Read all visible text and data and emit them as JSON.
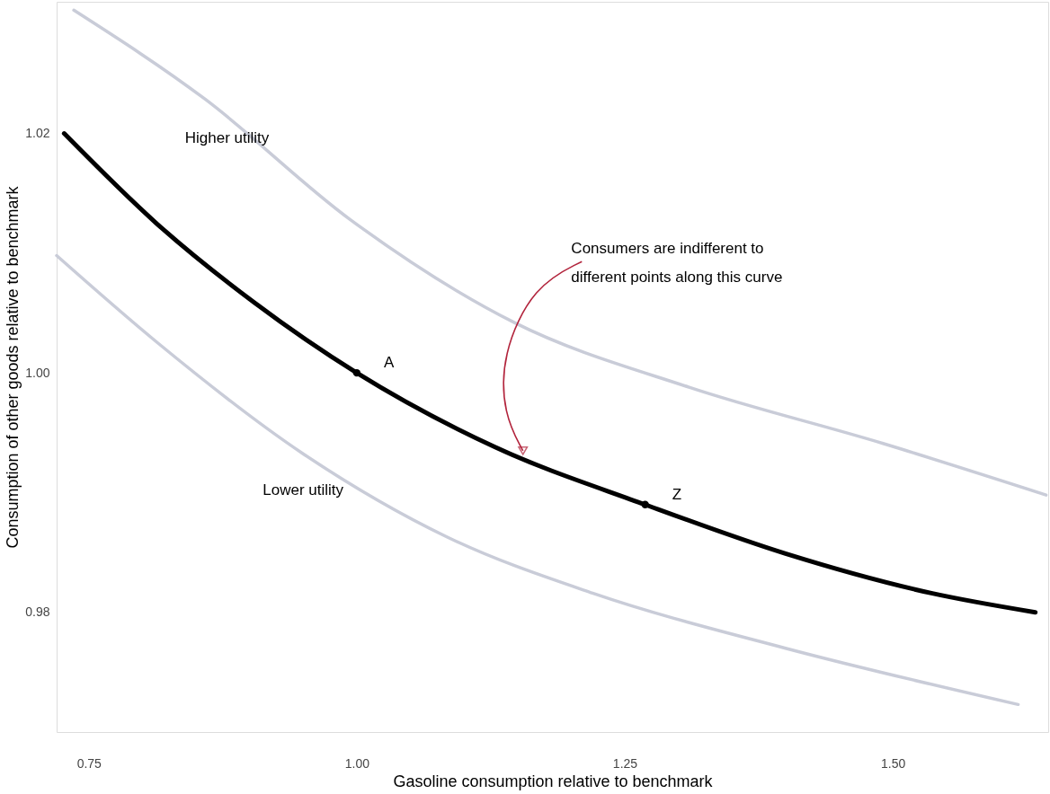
{
  "chart_data": {
    "type": "line",
    "xlabel": "Gasoline consumption relative to benchmark",
    "ylabel": "Consumption of other goods relative to benchmark",
    "xlim": [
      0.72,
      1.645
    ],
    "ylim": [
      0.97,
      1.031
    ],
    "xticks": [
      {
        "value": 0.75,
        "label": "0.75"
      },
      {
        "value": 1.0,
        "label": "1.00"
      },
      {
        "value": 1.25,
        "label": "1.25"
      },
      {
        "value": 1.5,
        "label": "1.50"
      }
    ],
    "yticks": [
      {
        "value": 0.98,
        "label": "0.98"
      },
      {
        "value": 1.0,
        "label": "1.00"
      },
      {
        "value": 1.02,
        "label": "1.02"
      }
    ],
    "grid": false,
    "series": [
      {
        "name": "Higher utility",
        "color": "#c9ccd8",
        "x": [
          0.736,
          0.858,
          0.994,
          1.147,
          1.31,
          1.491,
          1.643
        ],
        "values": [
          1.0303,
          1.0229,
          1.0128,
          1.0042,
          0.9988,
          0.9941,
          0.9898
        ]
      },
      {
        "name": "Lower utility",
        "color": "#c9ccd8",
        "x": [
          0.72,
          0.813,
          0.949,
          1.084,
          1.22,
          1.4,
          1.617
        ],
        "values": [
          1.0098,
          1.0026,
          0.9933,
          0.9863,
          0.9816,
          0.977,
          0.9723
        ]
      },
      {
        "color": "#000000",
        "x": [
          0.727,
          0.813,
          0.904,
          1.0,
          1.129,
          1.269,
          1.4,
          1.536,
          1.633
        ],
        "values": [
          1.02,
          1.0125,
          1.0059,
          1.0,
          0.9938,
          0.989,
          0.9849,
          0.9816,
          0.98
        ]
      },
      {
        "type": "scatter",
        "marker": "circle",
        "color": "#000000",
        "x": [
          1.0,
          1.269
        ],
        "values": [
          1.0,
          0.989
        ]
      }
    ],
    "annotations": [
      {
        "text": "A",
        "x": 1.0,
        "y": 1.0
      },
      {
        "text": "Z",
        "x": 1.269,
        "y": 0.989
      },
      {
        "text": "Consumers are indifferent to\ndifferent points along this curve",
        "x": 1.155,
        "y": 0.9935
      }
    ]
  }
}
